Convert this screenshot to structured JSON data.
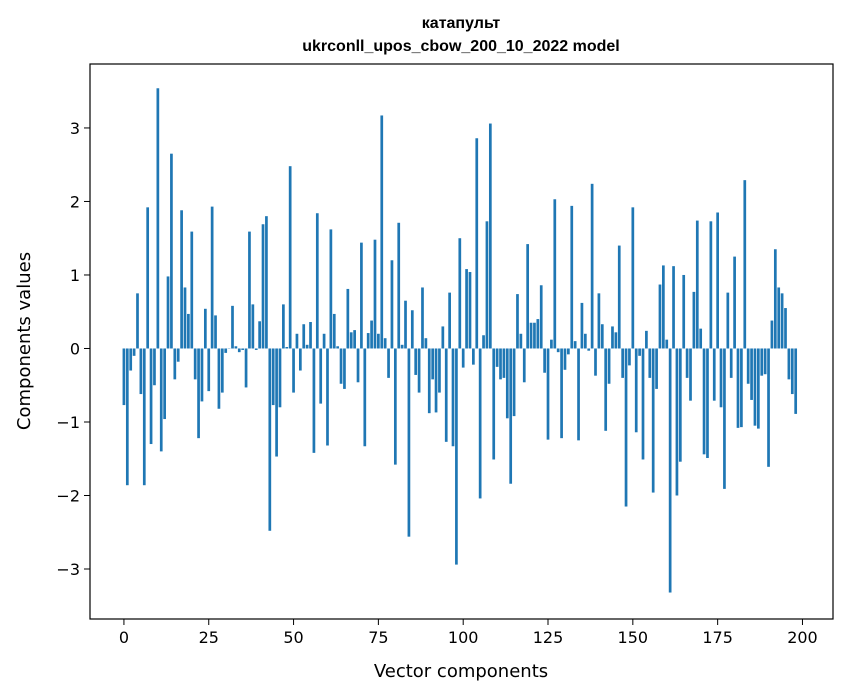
{
  "chart_data": {
    "type": "bar",
    "title": "катапульт",
    "subtitle": "ukrconll_upos_cbow_200_10_2022 model",
    "xlabel": "Vector components",
    "ylabel": "Components values",
    "xlim": [
      -10,
      209
    ],
    "ylim": [
      -3.68,
      3.87
    ],
    "xticks": [
      0,
      25,
      50,
      75,
      100,
      125,
      150,
      175,
      200
    ],
    "xtick_labels": [
      "0",
      "25",
      "50",
      "75",
      "100",
      "125",
      "150",
      "175",
      "200"
    ],
    "yticks": [
      -3,
      -2,
      -1,
      0,
      1,
      2,
      3
    ],
    "ytick_labels": [
      "−3",
      "−2",
      "−1",
      "0",
      "1",
      "2",
      "3"
    ],
    "bar_color": "#1f77b4",
    "values": [
      -0.77,
      -1.86,
      -0.3,
      -0.1,
      0.75,
      -0.62,
      -1.86,
      1.92,
      -1.3,
      -0.5,
      3.54,
      -1.4,
      -0.96,
      0.98,
      2.65,
      -0.42,
      -0.18,
      1.88,
      0.83,
      0.47,
      1.59,
      -0.42,
      -1.22,
      -0.72,
      0.54,
      -0.58,
      1.93,
      0.45,
      -0.82,
      -0.6,
      -0.06,
      0.0,
      0.58,
      0.03,
      -0.05,
      -0.02,
      -0.53,
      1.59,
      0.6,
      -0.02,
      0.37,
      1.69,
      1.8,
      -2.48,
      -0.77,
      -1.47,
      -0.8,
      0.6,
      0.02,
      2.48,
      -0.6,
      0.2,
      -0.3,
      0.33,
      0.05,
      0.36,
      -1.42,
      1.84,
      -0.75,
      0.2,
      -1.32,
      1.62,
      0.47,
      0.03,
      -0.48,
      -0.55,
      0.81,
      0.22,
      0.25,
      -0.46,
      1.44,
      -1.33,
      0.21,
      0.38,
      1.48,
      0.2,
      3.17,
      0.14,
      -0.4,
      1.2,
      -1.58,
      1.71,
      0.05,
      0.65,
      -2.56,
      0.52,
      -0.36,
      -0.6,
      0.83,
      0.14,
      -0.88,
      -0.42,
      -0.87,
      -0.6,
      0.3,
      -1.27,
      0.76,
      -1.33,
      -2.94,
      1.5,
      -0.26,
      1.08,
      1.04,
      -0.22,
      2.86,
      -2.04,
      0.18,
      1.73,
      3.06,
      -1.51,
      -0.25,
      -0.42,
      -0.4,
      -0.95,
      -1.84,
      -0.92,
      0.74,
      0.2,
      -0.46,
      1.42,
      0.35,
      0.35,
      0.4,
      0.86,
      -0.33,
      -1.24,
      0.12,
      2.03,
      -0.05,
      -1.22,
      -0.29,
      -0.08,
      1.94,
      0.1,
      -1.25,
      0.62,
      0.2,
      -0.03,
      2.24,
      -0.37,
      0.75,
      0.33,
      -1.12,
      -0.48,
      0.3,
      0.22,
      1.4,
      -0.4,
      -2.15,
      -0.23,
      1.92,
      -1.14,
      -0.1,
      -1.51,
      0.24,
      -0.4,
      -1.96,
      -0.55,
      0.87,
      1.13,
      0.12,
      -3.32,
      1.12,
      -2.0,
      -1.54,
      1.0,
      -0.4,
      -0.71,
      0.77,
      1.74,
      0.27,
      -1.44,
      -1.49,
      1.73,
      -0.71,
      1.85,
      -0.8,
      -1.91,
      0.76,
      -0.4,
      1.25,
      -1.08,
      -1.07,
      2.29,
      -0.48,
      -0.7,
      -1.05,
      -1.09,
      -0.37,
      -0.35,
      -1.61,
      0.38,
      1.35,
      0.83,
      0.75,
      0.55,
      -0.42,
      -0.62,
      -0.89
    ]
  }
}
